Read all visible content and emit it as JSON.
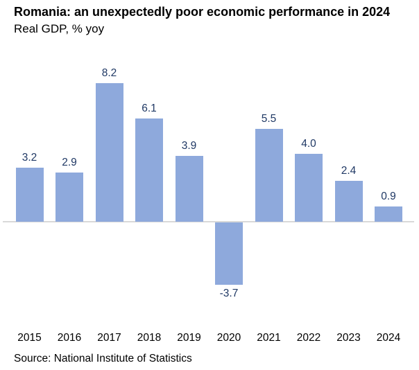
{
  "header": {
    "title": "Romania: an unexpectedly poor economic performance in 2024",
    "subtitle": "Real GDP, % yoy"
  },
  "footer": {
    "source": "Source: National Institute of Statistics"
  },
  "colors": {
    "bar_fill": "#8ea9dc",
    "data_label": "#1f3864",
    "axis_line": "#d9d9d9",
    "text": "#000000",
    "background": "#ffffff"
  },
  "chart_data": {
    "type": "bar",
    "title": "Romania: an unexpectedly poor economic performance in 2024",
    "subtitle": "Real GDP, % yoy",
    "categories": [
      "2015",
      "2016",
      "2017",
      "2018",
      "2019",
      "2020",
      "2021",
      "2022",
      "2023",
      "2024"
    ],
    "values": [
      3.2,
      2.9,
      8.2,
      6.1,
      3.9,
      -3.7,
      5.5,
      4.0,
      2.4,
      0.9
    ],
    "value_labels": [
      "3.2",
      "2.9",
      "8.2",
      "6.1",
      "3.9",
      "-3.7",
      "5.5",
      "4.0",
      "2.4",
      "0.9"
    ],
    "xlabel": "",
    "ylabel": "",
    "ylim": [
      -5.5,
      9.5
    ],
    "grid": false,
    "legend": "none",
    "data_labels": "outside-end",
    "source": "Source: National Institute of Statistics"
  }
}
